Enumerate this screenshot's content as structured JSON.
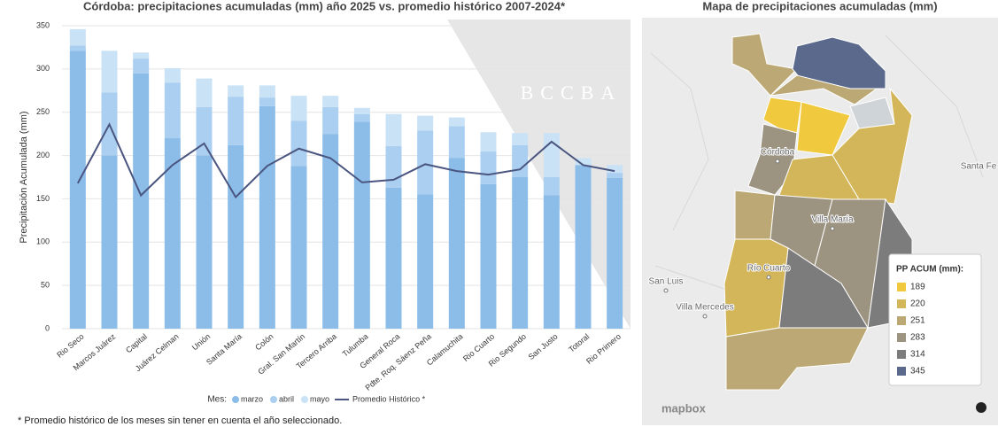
{
  "chart_data": {
    "type": "stacked_bar_line",
    "title": "Córdoba: precipitaciones acumuladas (mm) año 2025 vs. promedio histórico 2007-2024*",
    "y_label": "Precipitación Acumulada (mm)",
    "legend_title": "Mes:",
    "footnote": "* Promedio histórico de los meses sin tener en cuenta el año seleccionado.",
    "watermark": "BCCBA",
    "categories": [
      "Rio Seco",
      "Marcos Juárez",
      "Capital",
      "Juárez Celman",
      "Unión",
      "Santa María",
      "Colón",
      "Gral. San Martín",
      "Tercero Arriba",
      "Tulumba",
      "General Roca",
      "Pdte. Roq. Sáenz Peña",
      "Calamuchita",
      "Rio Cuarto",
      "Rio Segundo",
      "San Justo",
      "Totoral",
      "Rio Primero"
    ],
    "series": [
      {
        "name": "marzo",
        "color": "#8bbde8",
        "values": [
          321,
          200,
          295,
          220,
          200,
          212,
          257,
          188,
          225,
          239,
          163,
          155,
          197,
          167,
          175,
          154,
          189,
          174
        ]
      },
      {
        "name": "abril",
        "color": "#abcff0",
        "values": [
          6,
          73,
          17,
          64,
          56,
          56,
          10,
          52,
          31,
          9,
          48,
          74,
          37,
          38,
          37,
          21,
          0,
          6
        ]
      },
      {
        "name": "mayo",
        "color": "#c9e2f6",
        "values": [
          19,
          48,
          7,
          17,
          33,
          13,
          14,
          29,
          13,
          7,
          37,
          17,
          10,
          22,
          14,
          51,
          8,
          9
        ]
      },
      {
        "name": "Promedio Histórico *",
        "color": "#4a5580",
        "kind": "line",
        "values": [
          168,
          236,
          154,
          189,
          214,
          152,
          188,
          208,
          197,
          169,
          172,
          190,
          182,
          178,
          184,
          216,
          189,
          182
        ]
      }
    ],
    "ylim": [
      0,
      350
    ],
    "yticks": [
      0,
      50,
      100,
      150,
      200,
      250,
      300,
      350
    ],
    "grid": true
  },
  "map": {
    "title": "Mapa de precipitaciones acumuladas (mm)",
    "legend_title": "PP ACUM (mm):",
    "legend": [
      {
        "value": 189,
        "color": "#f0c93e"
      },
      {
        "value": 220,
        "color": "#d4b65a"
      },
      {
        "value": 251,
        "color": "#bba874"
      },
      {
        "value": 283,
        "color": "#9c9480"
      },
      {
        "value": 314,
        "color": "#7c7c7c"
      },
      {
        "value": 345,
        "color": "#5b6a8c"
      }
    ],
    "places": [
      "Córdoba",
      "Villa María",
      "Río Cuarto",
      "Santa Fe",
      "San Luis",
      "Villa Mercedes"
    ],
    "attribution": "mapbox"
  }
}
